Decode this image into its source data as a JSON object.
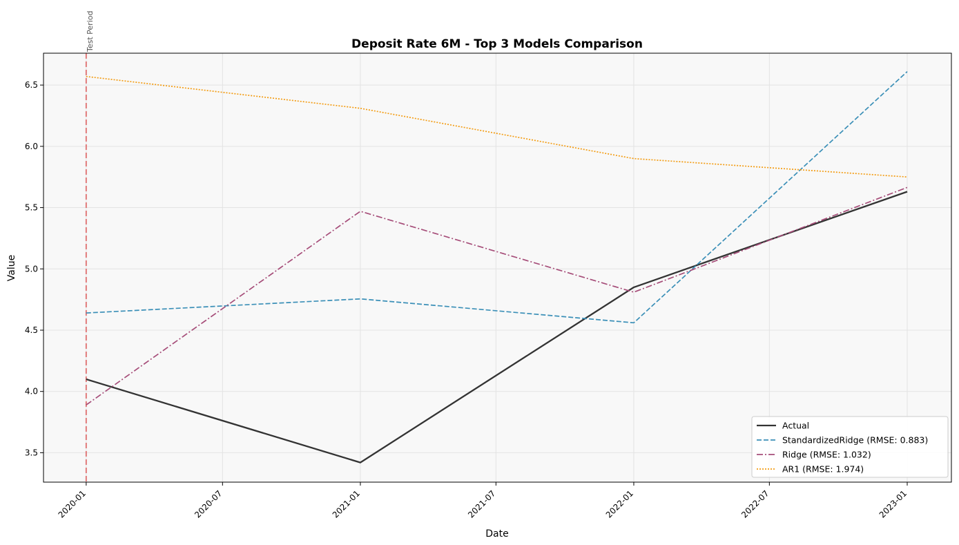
{
  "chart_data": {
    "type": "line",
    "title": "Deposit Rate 6M - Top 3 Models Comparison",
    "xlabel": "Date",
    "ylabel": "Value",
    "x": [
      "2020-01",
      "2021-01",
      "2022-01",
      "2023-01"
    ],
    "x_ticks": [
      "2020-01",
      "2020-07",
      "2021-01",
      "2021-07",
      "2022-01",
      "2022-07",
      "2023-01"
    ],
    "xlim": [
      "2019-11-05",
      "2023-03-01"
    ],
    "y_ticks": [
      3.5,
      4.0,
      4.5,
      5.0,
      5.5,
      6.0,
      6.5
    ],
    "ylim": [
      3.26,
      6.76
    ],
    "grid": true,
    "legend_position": "bottom-right",
    "annotation": {
      "label": "Test Period",
      "x": "2020-01",
      "color": "#e06666"
    },
    "series": [
      {
        "name": "Actual",
        "values": [
          4.1,
          3.42,
          4.85,
          5.63
        ],
        "color": "#333333",
        "style": "solid"
      },
      {
        "name": "StandardizedRidge (RMSE: 0.883)",
        "values": [
          4.64,
          4.755,
          4.56,
          6.61
        ],
        "color": "#3a8fb7",
        "style": "dashed"
      },
      {
        "name": "Ridge (RMSE: 1.032)",
        "values": [
          3.89,
          5.47,
          4.81,
          5.665
        ],
        "color": "#a64d79",
        "style": "dashdot"
      },
      {
        "name": "AR1 (RMSE: 1.974)",
        "values": [
          6.57,
          6.31,
          5.9,
          5.75
        ],
        "color": "#f39c12",
        "style": "dotted"
      }
    ]
  }
}
